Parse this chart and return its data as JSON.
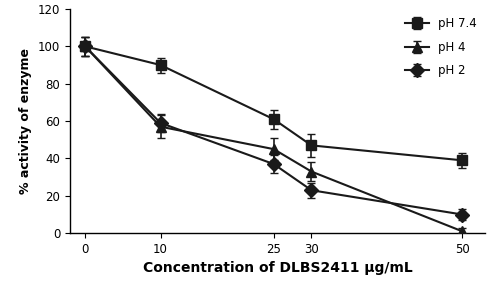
{
  "x": [
    0,
    10,
    25,
    30,
    50
  ],
  "pH74_y": [
    100,
    90,
    61,
    47,
    39
  ],
  "pH4_y": [
    100,
    57,
    45,
    33,
    1
  ],
  "pH2_y": [
    100,
    59,
    37,
    23,
    10
  ],
  "pH74_yerr": [
    5,
    4,
    5,
    6,
    4
  ],
  "pH4_yerr": [
    5,
    6,
    6,
    5,
    2
  ],
  "pH2_yerr": [
    5,
    5,
    5,
    4,
    3
  ],
  "xlabel": "Concentration of DLBS2411 μg/mL",
  "ylabel": "% activity of enzyme",
  "ylim": [
    0,
    120
  ],
  "yticks": [
    0,
    20,
    40,
    60,
    80,
    100,
    120
  ],
  "xticks": [
    0,
    10,
    25,
    30,
    50
  ],
  "line_color": "#1a1a1a",
  "marker_square": "s",
  "marker_triangle": "^",
  "marker_diamond": "D",
  "legend_labels": [
    "pH 7.4",
    "pH 4",
    "pH 2"
  ],
  "markersize": 7,
  "linewidth": 1.5,
  "capsize": 3,
  "elinewidth": 1.2
}
